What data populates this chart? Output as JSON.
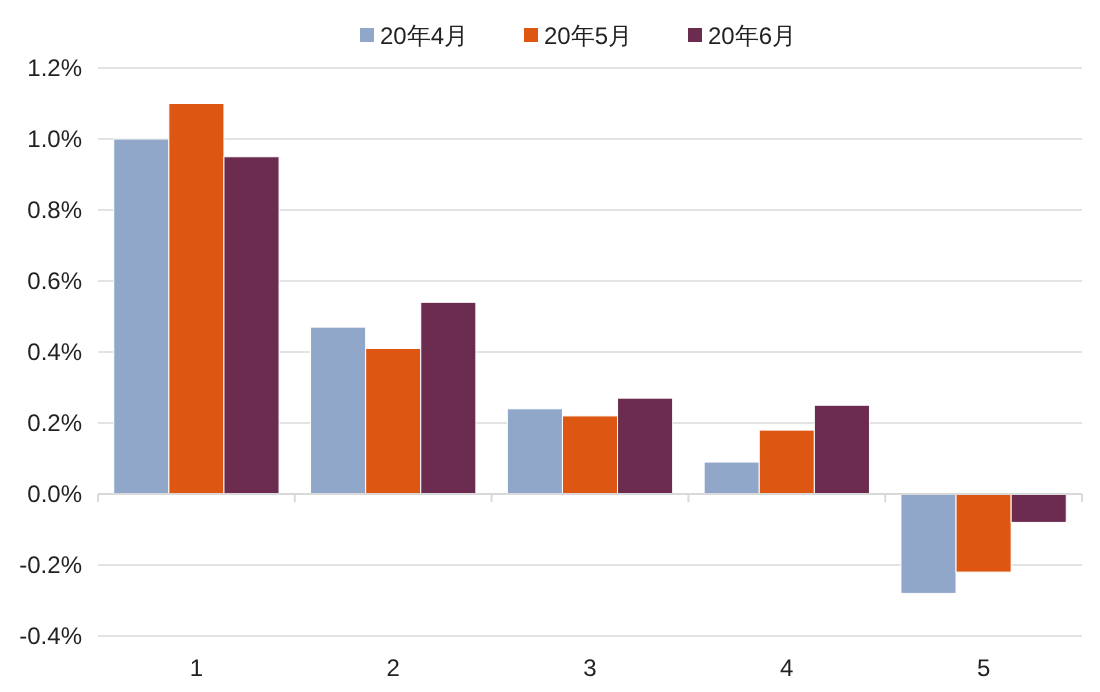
{
  "chart_data": {
    "type": "bar",
    "categories": [
      "1",
      "2",
      "3",
      "4",
      "5"
    ],
    "series": [
      {
        "name": "20年4月",
        "color": "#91a7c9",
        "values": [
          1.0,
          0.47,
          0.24,
          0.09,
          -0.28
        ]
      },
      {
        "name": "20年5月",
        "color": "#dd5713",
        "values": [
          1.1,
          0.41,
          0.22,
          0.18,
          -0.22
        ]
      },
      {
        "name": "20年6月",
        "color": "#6b2c50",
        "values": [
          0.95,
          0.54,
          0.27,
          0.25,
          -0.08
        ]
      }
    ],
    "ylim": [
      -0.4,
      1.2
    ],
    "yticks": [
      {
        "value": -0.4,
        "label": "-0.4%"
      },
      {
        "value": -0.2,
        "label": "-0.2%"
      },
      {
        "value": 0,
        "label": "0.0%"
      },
      {
        "value": 0.2,
        "label": "0.2%"
      },
      {
        "value": 0.4,
        "label": "0.4%"
      },
      {
        "value": 0.6,
        "label": "0.6%"
      },
      {
        "value": 0.8,
        "label": "0.8%"
      },
      {
        "value": 1.0,
        "label": "1.0%"
      },
      {
        "value": 1.2,
        "label": "1.2%"
      }
    ],
    "grid": "y",
    "legend": "top"
  }
}
